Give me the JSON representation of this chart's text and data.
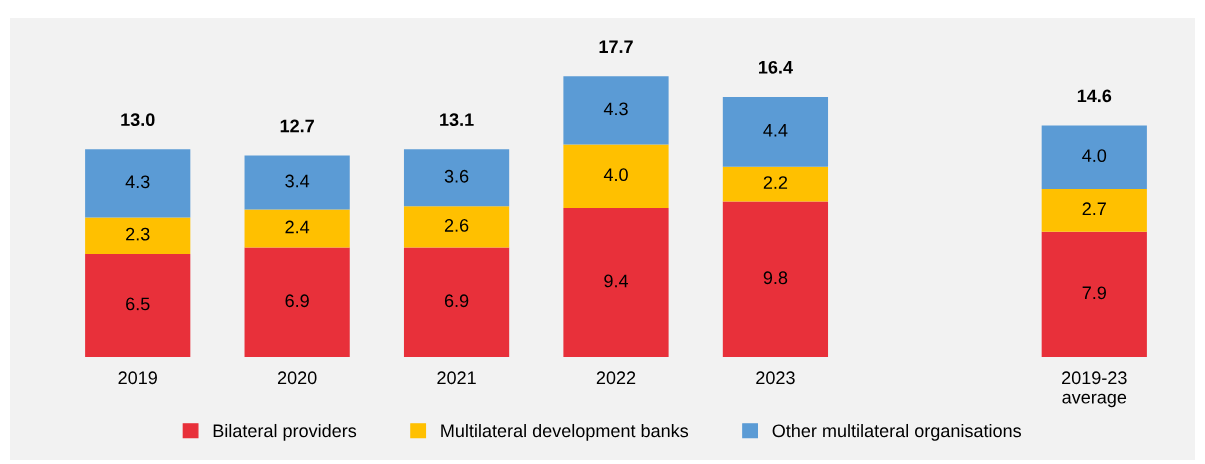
{
  "chart_data": {
    "type": "bar",
    "stacked": true,
    "legend": "bottom",
    "grid": false,
    "categories": [
      "2019",
      "2020",
      "2021",
      "2022",
      "2023",
      null,
      "2019-23\naverage"
    ],
    "series": [
      {
        "name": "Bilateral providers",
        "color": "#e8303a",
        "values": [
          6.5,
          6.9,
          6.9,
          9.4,
          9.8,
          null,
          7.9
        ],
        "value_labels": [
          "6.5",
          "6.9",
          "6.9",
          "9.4",
          "9.8",
          null,
          "7.9"
        ]
      },
      {
        "name": "Multilateral development banks",
        "color": "#ffc000",
        "values": [
          2.3,
          2.4,
          2.6,
          4.0,
          2.2,
          null,
          2.7
        ],
        "value_labels": [
          "2.3",
          "2.4",
          "2.6",
          "4.0",
          "2.2",
          null,
          "2.7"
        ]
      },
      {
        "name": "Other multilateral organisations",
        "color": "#5b9bd5",
        "values": [
          4.3,
          3.4,
          3.6,
          4.3,
          4.4,
          null,
          4.0
        ],
        "value_labels": [
          "4.3",
          "3.4",
          "3.6",
          "4.3",
          "4.4",
          null,
          "4.0"
        ]
      }
    ],
    "totals": [
      "13.0",
      "12.7",
      "13.1",
      "17.7",
      "16.4",
      null,
      "14.6"
    ]
  }
}
